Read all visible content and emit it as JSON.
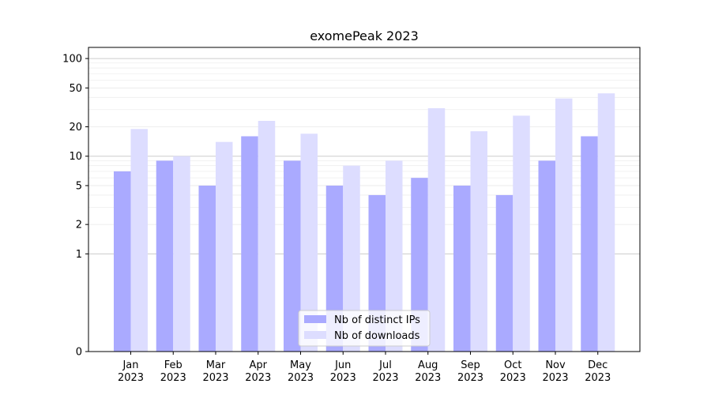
{
  "chart_data": {
    "type": "bar",
    "title": "exomePeak 2023",
    "xlabel": "",
    "ylabel": "",
    "yscale": "symlog",
    "ylim": [
      0,
      130
    ],
    "yticks": [
      0,
      1,
      2,
      5,
      10,
      20,
      50,
      100
    ],
    "ytick_labels": [
      "0",
      "1",
      "2",
      "5",
      "10",
      "20",
      "50",
      "100"
    ],
    "grid": true,
    "legend_position": "bottom-center",
    "categories": [
      "Jan\n2023",
      "Feb\n2023",
      "Mar\n2023",
      "Apr\n2023",
      "May\n2023",
      "Jun\n2023",
      "Jul\n2023",
      "Aug\n2023",
      "Sep\n2023",
      "Oct\n2023",
      "Nov\n2023",
      "Dec\n2023"
    ],
    "category_labels": [
      [
        "Jan",
        "2023"
      ],
      [
        "Feb",
        "2023"
      ],
      [
        "Mar",
        "2023"
      ],
      [
        "Apr",
        "2023"
      ],
      [
        "May",
        "2023"
      ],
      [
        "Jun",
        "2023"
      ],
      [
        "Jul",
        "2023"
      ],
      [
        "Aug",
        "2023"
      ],
      [
        "Sep",
        "2023"
      ],
      [
        "Oct",
        "2023"
      ],
      [
        "Nov",
        "2023"
      ],
      [
        "Dec",
        "2023"
      ]
    ],
    "series": [
      {
        "name": "Nb of distinct IPs",
        "color": "#aaaaff",
        "values": [
          7,
          9,
          5,
          16,
          9,
          5,
          4,
          6,
          5,
          4,
          9,
          16
        ]
      },
      {
        "name": "Nb of downloads",
        "color": "#ddddff",
        "values": [
          19,
          10,
          14,
          23,
          17,
          8,
          9,
          31,
          18,
          26,
          39,
          44
        ]
      }
    ]
  }
}
